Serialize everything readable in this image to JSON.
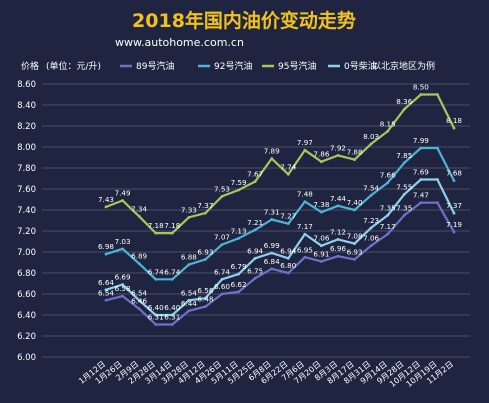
{
  "header": {
    "title": "2018年国内油价变动走势",
    "site": "www.autohome.com.cn",
    "price_label": "价格",
    "unit_label": "(单位：元/升)",
    "region_note": "以北京地区为例"
  },
  "colors": {
    "background": "#1f2541",
    "title": "#f2c11c",
    "text": "#ffffff",
    "grid": "#b8bccb",
    "series": [
      "#6a73c9",
      "#4fb3d6",
      "#a6c75b",
      "#8fd0ee"
    ]
  },
  "chart_data": {
    "type": "line",
    "title": "2018年国内油价变动走势",
    "xlabel": "",
    "ylabel": "价格 (单位：元/升)",
    "ylim": [
      6.0,
      8.6
    ],
    "yticks": [
      6.0,
      6.2,
      6.4,
      6.6,
      6.8,
      7.0,
      7.2,
      7.4,
      7.6,
      7.8,
      8.0,
      8.2,
      8.4,
      8.6
    ],
    "grid": true,
    "legend_position": "top",
    "categories": [
      "1月12日",
      "1月26日",
      "2月9日",
      "2月28日",
      "3月14日",
      "3月28日",
      "4月12日",
      "4月26日",
      "5月11日",
      "5月25日",
      "6月8日",
      "6月22日",
      "7月6日",
      "7月20日",
      "8月3日",
      "8月17日",
      "8月31日",
      "9月14日",
      "9月28日",
      "10月12日",
      "10月19日",
      "11月2日"
    ],
    "series": [
      {
        "name": "89号汽油",
        "values": [
          6.54,
          6.58,
          6.46,
          6.31,
          6.31,
          6.44,
          6.48,
          6.6,
          6.62,
          6.75,
          6.84,
          6.8,
          6.95,
          6.91,
          6.96,
          6.93,
          7.06,
          7.17,
          7.35,
          7.47,
          7.47,
          7.19
        ]
      },
      {
        "name": "92号汽油",
        "values": [
          6.98,
          7.03,
          6.89,
          6.74,
          6.74,
          6.88,
          6.93,
          7.07,
          7.13,
          7.21,
          7.31,
          7.27,
          7.48,
          7.38,
          7.44,
          7.4,
          7.54,
          7.66,
          7.85,
          7.99,
          7.99,
          7.68
        ]
      },
      {
        "name": "95号汽油",
        "values": [
          7.43,
          7.49,
          7.34,
          7.18,
          7.18,
          7.33,
          7.37,
          7.53,
          7.59,
          7.67,
          7.89,
          7.74,
          7.97,
          7.86,
          7.92,
          7.88,
          8.03,
          8.15,
          8.36,
          8.5,
          8.5,
          8.18
        ]
      },
      {
        "name": "0号柴油",
        "values": [
          6.64,
          6.69,
          6.54,
          6.4,
          6.4,
          6.54,
          6.56,
          6.74,
          6.79,
          6.94,
          6.99,
          6.94,
          7.17,
          7.06,
          7.12,
          7.08,
          7.23,
          7.35,
          7.55,
          7.69,
          7.69,
          7.37
        ]
      }
    ],
    "labels": [
      [
        "6.54",
        "6.58",
        "6.46",
        "6.31",
        "6.31",
        "6.44",
        "6.48",
        "6.60",
        "6.62",
        "6.75",
        "6.84",
        "6.80",
        "6.95",
        "6.91",
        "6.96",
        "6.93",
        "7.06",
        "7.17",
        "7.35",
        "7.47",
        "",
        "7.19"
      ],
      [
        "6.98",
        "7.03",
        "6.89",
        "6.74",
        "6.74",
        "6.88",
        "6.93",
        "7.07",
        "7.13",
        "7.21",
        "7.31",
        "7.27",
        "7.48",
        "7.38",
        "7.44",
        "7.40",
        "7.54",
        "7.66",
        "7.85",
        "7.99",
        "",
        "7.68"
      ],
      [
        "7.43",
        "7.49",
        "7.34",
        "7.18",
        "7.18",
        "7.33",
        "7.37",
        "7.53",
        "7.59",
        "7.67",
        "7.89",
        "7.74",
        "7.97",
        "7.86",
        "7.92",
        "7.88",
        "8.03",
        "8.15",
        "8.36",
        "8.50",
        "",
        "8.18"
      ],
      [
        "6.64",
        "6.69",
        "6.54",
        "6.40",
        "6.40",
        "6.54",
        "6.56",
        "6.74",
        "6.79",
        "6.94",
        "6.99",
        "6.94",
        "7.17",
        "7.06",
        "7.12",
        "7.08",
        "7.23",
        "7.35",
        "7.55",
        "7.69",
        "",
        "7.37"
      ]
    ]
  }
}
